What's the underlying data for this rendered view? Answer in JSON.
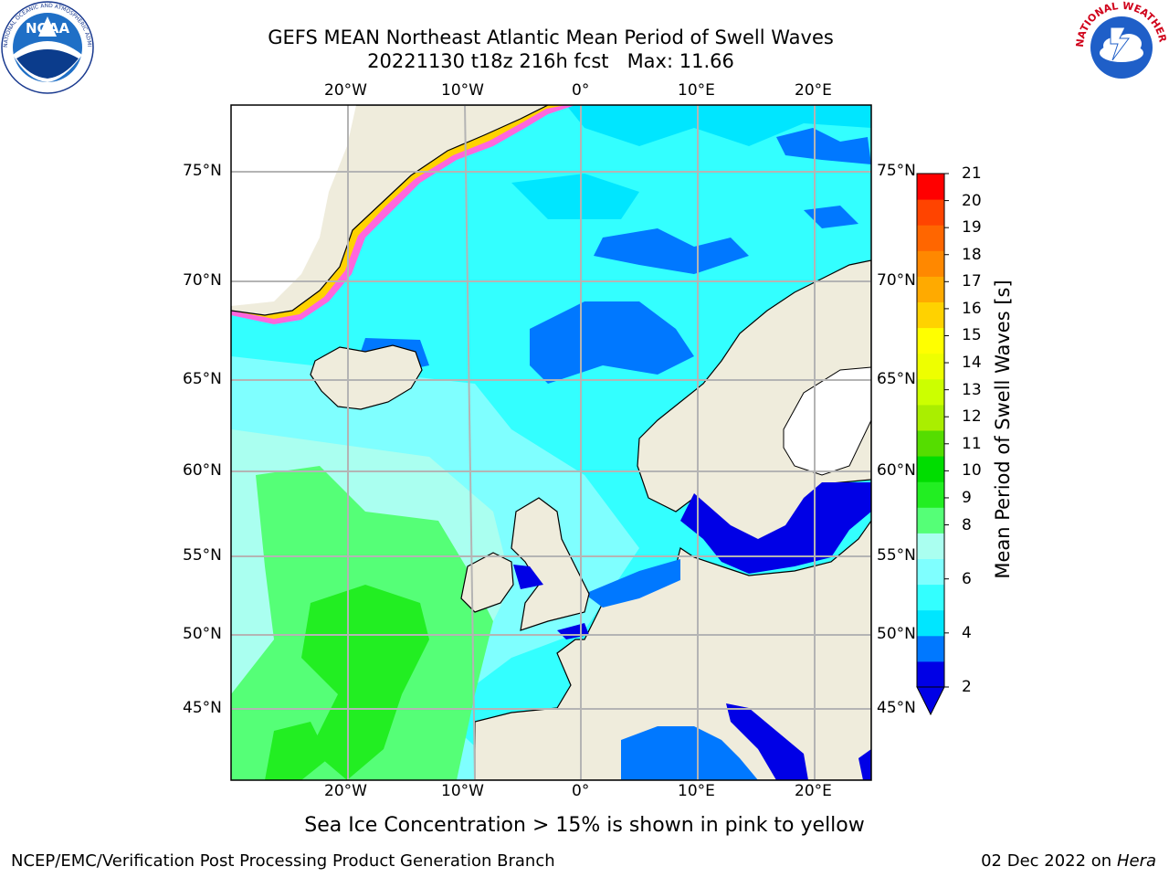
{
  "title": {
    "line1": "GEFS MEAN Northeast Atlantic Mean Period of Swell Waves",
    "line2": "20221130 t18z 216h fcst   Max: 11.66"
  },
  "note": "Sea Ice Concentration > 15% is shown in pink to yellow",
  "footer": {
    "left": "NCEP/EMC/Verification Post Processing Product Generation Branch",
    "date": "02 Dec 2022 on",
    "host": "Hera"
  },
  "logos": {
    "noaa": "NOAA",
    "noaa_ring": "NATIONAL OCEANIC AND ATMOSPHERIC ADMINISTRATION · U.S. DEPARTMENT OF COMMERCE",
    "nws_ring": "NATIONAL WEATHER SERVICE"
  },
  "map": {
    "lon_labels": [
      "20°W",
      "10°W",
      "0°",
      "10°E",
      "20°E"
    ],
    "lat_labels": [
      "75°N",
      "70°N",
      "65°N",
      "60°N",
      "55°N",
      "50°N",
      "45°N"
    ],
    "land_color": "#efecdc",
    "grid_color": "#b4b4b4"
  },
  "colorbar": {
    "label": "Mean Period of Swell Waves [s]",
    "ticks": [
      "21",
      "20",
      "19",
      "18",
      "17",
      "16",
      "15",
      "14",
      "13",
      "12",
      "11",
      "10",
      "9",
      "8",
      "7",
      "6",
      "5",
      "4",
      "3",
      "2"
    ],
    "tick_labels": [
      "21",
      "20",
      "19",
      "18",
      "17",
      "16",
      "15",
      "14",
      "13",
      "12",
      "11",
      "10",
      "9",
      "8",
      "6",
      "4",
      "2"
    ],
    "colors": [
      "#0000e6",
      "#0078ff",
      "#00e6ff",
      "#33ffff",
      "#7fffff",
      "#aafff0",
      "#55ff77",
      "#22ee22",
      "#00dd00",
      "#55dd00",
      "#aaee00",
      "#ccff00",
      "#eeff00",
      "#ffff00",
      "#ffd200",
      "#ffaa00",
      "#ff8800",
      "#ff6600",
      "#ff4400",
      "#ff0000"
    ]
  }
}
